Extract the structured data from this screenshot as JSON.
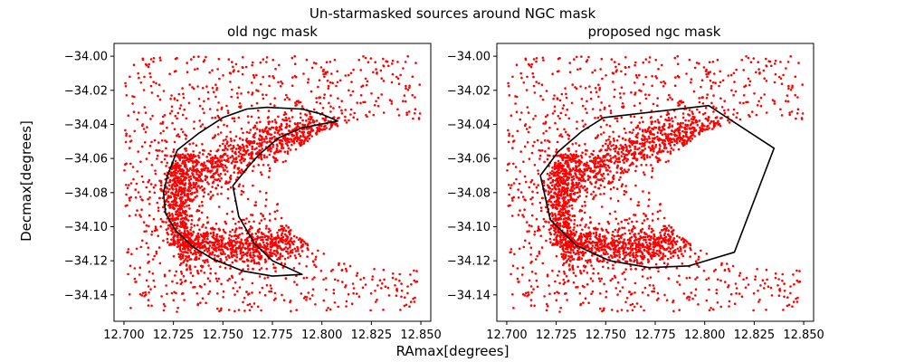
{
  "figure": {
    "suptitle": "Un-starmasked sources around NGC mask",
    "xlabel": "RAmax[degrees]",
    "ylabel": "Decmax[degrees]"
  },
  "colors": {
    "points": "#ff0000",
    "mask": "#000000",
    "axes": "#000000"
  },
  "chart_data": [
    {
      "type": "scatter",
      "title": "old ngc mask",
      "xlim": [
        12.695,
        12.855
      ],
      "ylim": [
        -34.1555,
        -33.9925
      ],
      "xticks": [
        12.7,
        12.725,
        12.75,
        12.775,
        12.8,
        12.825,
        12.85
      ],
      "xtick_labels": [
        "12.700",
        "12.725",
        "12.750",
        "12.775",
        "12.800",
        "12.825",
        "12.850"
      ],
      "yticks": [
        -34.0,
        -34.02,
        -34.04,
        -34.06,
        -34.08,
        -34.1,
        -34.12,
        -34.14
      ],
      "ytick_labels": [
        "−34.00",
        "−34.02",
        "−34.04",
        "−34.06",
        "−34.08",
        "−34.10",
        "−34.12",
        "−34.14"
      ],
      "grid": false,
      "series": [
        {
          "kind": "scatter",
          "color": "#ff0000",
          "distribution": {
            "background": {
              "count": 1100,
              "x_range": [
                12.7,
                12.85
              ],
              "y_range": [
                -34.15,
                -34.0
              ]
            },
            "upper_arc": {
              "count": 900,
              "ra_center": 12.775,
              "dec_center": -34.045,
              "ra_extent": [
                12.728,
                12.825
              ]
            },
            "lower_arc": {
              "count": 800,
              "ra_center": 12.765,
              "dec_center": -34.112,
              "ra_extent": [
                12.728,
                12.8
              ]
            },
            "left_arc": {
              "count": 500,
              "ra_center": 12.726,
              "dec_center": -34.085
            },
            "empty_region": {
              "ra_center": 12.835,
              "dec_center": -34.08,
              "ra_radius": 0.058,
              "dec_radius": 0.044
            }
          }
        },
        {
          "kind": "polygon",
          "name": "",
          "color": "#000000",
          "points": [
            [
              12.772,
              -34.03
            ],
            [
              12.79,
              -34.031
            ],
            [
              12.8,
              -34.034
            ],
            [
              12.808,
              -34.038
            ],
            [
              12.79,
              -34.042
            ],
            [
              12.778,
              -34.048
            ],
            [
              12.768,
              -34.058
            ],
            [
              12.762,
              -34.066
            ],
            [
              12.755,
              -34.076
            ],
            [
              12.758,
              -34.094
            ],
            [
              12.766,
              -34.11
            ],
            [
              12.775,
              -34.12
            ],
            [
              12.79,
              -34.128
            ],
            [
              12.775,
              -34.129
            ],
            [
              12.76,
              -34.126
            ],
            [
              12.745,
              -34.119
            ],
            [
              12.735,
              -34.112
            ],
            [
              12.726,
              -34.102
            ],
            [
              12.721,
              -34.092
            ],
            [
              12.72,
              -34.08
            ],
            [
              12.722,
              -34.07
            ],
            [
              12.727,
              -34.055
            ],
            [
              12.738,
              -34.045
            ],
            [
              12.75,
              -34.036
            ],
            [
              12.762,
              -34.031
            ],
            [
              12.772,
              -34.03
            ]
          ]
        }
      ]
    },
    {
      "type": "scatter",
      "title": "proposed ngc mask",
      "xlim": [
        12.695,
        12.855
      ],
      "ylim": [
        -34.1555,
        -33.9925
      ],
      "xticks": [
        12.7,
        12.725,
        12.75,
        12.775,
        12.8,
        12.825,
        12.85
      ],
      "xtick_labels": [
        "12.700",
        "12.725",
        "12.750",
        "12.775",
        "12.800",
        "12.825",
        "12.850"
      ],
      "yticks": [
        -34.0,
        -34.02,
        -34.04,
        -34.06,
        -34.08,
        -34.1,
        -34.12,
        -34.14
      ],
      "ytick_labels": [
        "−34.00",
        "−34.02",
        "−34.04",
        "−34.06",
        "−34.08",
        "−34.10",
        "−34.12",
        "−34.14"
      ],
      "grid": false,
      "series": [
        {
          "kind": "scatter",
          "color": "#ff0000",
          "distribution": {
            "background": {
              "count": 1100,
              "x_range": [
                12.7,
                12.85
              ],
              "y_range": [
                -34.15,
                -34.0
              ]
            },
            "upper_arc": {
              "count": 900,
              "ra_center": 12.775,
              "dec_center": -34.045,
              "ra_extent": [
                12.728,
                12.825
              ]
            },
            "lower_arc": {
              "count": 800,
              "ra_center": 12.765,
              "dec_center": -34.112,
              "ra_extent": [
                12.728,
                12.8
              ]
            },
            "left_arc": {
              "count": 500,
              "ra_center": 12.726,
              "dec_center": -34.085
            },
            "empty_region": {
              "ra_center": 12.835,
              "dec_center": -34.08,
              "ra_radius": 0.058,
              "dec_radius": 0.044
            }
          }
        },
        {
          "kind": "polygon",
          "name": "",
          "color": "#000000",
          "points": [
            [
              12.749,
              -34.036
            ],
            [
              12.802,
              -34.029
            ],
            [
              12.835,
              -34.054
            ],
            [
              12.815,
              -34.115
            ],
            [
              12.792,
              -34.123
            ],
            [
              12.772,
              -34.124
            ],
            [
              12.752,
              -34.12
            ],
            [
              12.735,
              -34.111
            ],
            [
              12.722,
              -34.096
            ],
            [
              12.717,
              -34.07
            ],
            [
              12.726,
              -34.056
            ],
            [
              12.738,
              -34.044
            ],
            [
              12.749,
              -34.036
            ]
          ]
        }
      ]
    }
  ]
}
